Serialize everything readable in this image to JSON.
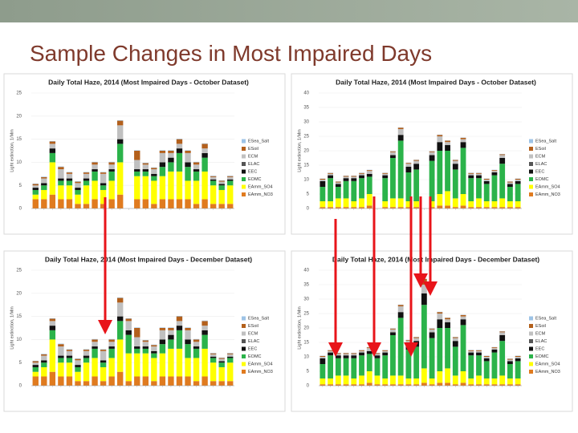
{
  "title": "Sample Changes in Most Impaired Days",
  "chart_data": [
    {
      "type": "bar",
      "stacked": true,
      "grid": true,
      "title": "Daily Total Haze, 2014 (Most Impaired Days - October Dataset)",
      "y_label": "Light extinction, 1/Mm",
      "categories": [
        null,
        null,
        null,
        null,
        null,
        null,
        null,
        null,
        null,
        null,
        null,
        null,
        null,
        null,
        null,
        null,
        null,
        null,
        null,
        null,
        null,
        null,
        null,
        null
      ],
      "ylim": [
        0,
        25
      ],
      "yticks": [
        0,
        5,
        10,
        15,
        20,
        25
      ],
      "series": [
        {
          "name": "EAmm_NO3",
          "color": "#e07b1f",
          "values": [
            2,
            2,
            3,
            2,
            2,
            1,
            1,
            2,
            1,
            2,
            3,
            null,
            2,
            2,
            1,
            2,
            2,
            2,
            2,
            1,
            2,
            1,
            1,
            1
          ]
        },
        {
          "name": "EAmm_SO4",
          "color": "#ffff00",
          "values": [
            1,
            2,
            7,
            3,
            3,
            2,
            4,
            4,
            3,
            4,
            7,
            null,
            5,
            5,
            5,
            5,
            6,
            6,
            4,
            5,
            6,
            4,
            3,
            4
          ]
        },
        {
          "name": "EOMC",
          "color": "#2bb34a",
          "values": [
            1,
            1,
            2,
            1,
            1,
            1,
            1,
            2,
            1,
            2,
            4,
            null,
            1,
            1,
            1,
            2,
            2,
            4,
            3,
            2,
            3,
            1,
            1,
            1
          ]
        },
        {
          "name": "EEC",
          "color": "#111111",
          "values": [
            0.5,
            0.5,
            1,
            0.5,
            0.5,
            0.5,
            0.5,
            0.5,
            0.5,
            0.5,
            1,
            null,
            0.5,
            0.5,
            0.5,
            1,
            1,
            1,
            1,
            0.5,
            1,
            0.3,
            0.3,
            0.3
          ]
        },
        {
          "name": "ELAC",
          "color": "#555555",
          "values": [
            0,
            0,
            0,
            0,
            0,
            0,
            0,
            0,
            0,
            0,
            0,
            null,
            0,
            0,
            0,
            0,
            0,
            0,
            0,
            0,
            0,
            0,
            0,
            0
          ]
        },
        {
          "name": "ECM",
          "color": "#c0c0c0",
          "values": [
            0.5,
            1,
            1,
            2,
            1,
            1,
            1,
            1,
            2,
            1,
            3,
            null,
            2,
            1,
            1,
            2,
            1,
            1,
            2,
            1,
            1,
            0.5,
            0.5,
            0.5
          ]
        },
        {
          "name": "ESoil",
          "color": "#b3601c",
          "values": [
            0.3,
            0.3,
            0.5,
            0.5,
            0.3,
            0.3,
            0.3,
            0.5,
            0.3,
            0.5,
            1,
            null,
            2,
            0.3,
            0.3,
            0.5,
            0.5,
            1,
            0.5,
            0.5,
            1,
            0.2,
            0.2,
            0.2
          ]
        },
        {
          "name": "ESea_Salt",
          "color": "#9dc3e6",
          "values": [
            0.1,
            0.1,
            0.1,
            0.1,
            0.1,
            0.1,
            0.1,
            0.1,
            0.1,
            0.1,
            0.1,
            null,
            0.1,
            0.1,
            0.1,
            0.1,
            0.1,
            0.1,
            0.1,
            0.1,
            0.1,
            0.1,
            0.1,
            0.1
          ]
        }
      ]
    },
    {
      "type": "bar",
      "stacked": true,
      "grid": true,
      "title": "Daily Total Haze, 2014 (Most Impaired Days - October Dataset)",
      "y_label": "Light extinction, 1/Mm",
      "categories": [
        null,
        null,
        null,
        null,
        null,
        null,
        null,
        null,
        null,
        null,
        null,
        null,
        null,
        null,
        null,
        null,
        null,
        null,
        null,
        null,
        null,
        null,
        null,
        null,
        null,
        null
      ],
      "ylim": [
        0,
        40
      ],
      "yticks": [
        0,
        5,
        10,
        15,
        20,
        25,
        30,
        35,
        40
      ],
      "series": [
        {
          "name": "EAmm_NO3",
          "color": "#e07b1f",
          "values": [
            0.5,
            0.5,
            0.5,
            0.5,
            0.5,
            0.5,
            1,
            null,
            0.5,
            0.5,
            0.5,
            0.5,
            0.5,
            null,
            0.5,
            1,
            1,
            0.5,
            1,
            0.5,
            0.5,
            0.5,
            0.5,
            0.5,
            0.5,
            0.5
          ]
        },
        {
          "name": "EAmm_SO4",
          "color": "#ffff00",
          "values": [
            2,
            2,
            3,
            3,
            2,
            3,
            4,
            null,
            2,
            3,
            3,
            2,
            2,
            null,
            2,
            4,
            5,
            3,
            4,
            2,
            3,
            2,
            2,
            3,
            2,
            2
          ]
        },
        {
          "name": "EOMC",
          "color": "#2bb34a",
          "values": [
            5,
            8,
            4,
            6,
            7,
            7,
            6,
            null,
            8,
            14,
            20,
            10,
            11,
            null,
            14,
            15,
            14,
            10,
            16,
            8,
            7,
            6,
            9,
            12,
            5,
            6
          ]
        },
        {
          "name": "EEC",
          "color": "#111111",
          "values": [
            2,
            1,
            1,
            1,
            1,
            1,
            1,
            null,
            1,
            1,
            2,
            2,
            2,
            null,
            2,
            3,
            2,
            2,
            2,
            1,
            1,
            1,
            1,
            2,
            1,
            1
          ]
        },
        {
          "name": "ELAC",
          "color": "#555555",
          "values": [
            0,
            0,
            0,
            0,
            0,
            0,
            0,
            null,
            0,
            0,
            0,
            0,
            0,
            null,
            0,
            0,
            0,
            0,
            0,
            0,
            0,
            0,
            0,
            0,
            0,
            0
          ]
        },
        {
          "name": "ECM",
          "color": "#c0c0c0",
          "values": [
            0.5,
            0.5,
            0.5,
            0.5,
            0.5,
            0.5,
            1,
            null,
            0.5,
            1,
            2,
            1,
            1,
            null,
            1,
            2,
            1,
            1,
            1,
            0.5,
            0.5,
            0.5,
            0.5,
            1,
            0.5,
            0.5
          ]
        },
        {
          "name": "ESoil",
          "color": "#b3601c",
          "values": [
            0.3,
            0.3,
            0.3,
            0.3,
            0.3,
            0.3,
            0.3,
            null,
            0.3,
            0.3,
            0.5,
            0.3,
            0.3,
            null,
            0.3,
            0.5,
            0.5,
            0.3,
            0.5,
            0.3,
            0.3,
            0.3,
            0.3,
            0.3,
            0.3,
            0.3
          ]
        },
        {
          "name": "ESea_Salt",
          "color": "#9dc3e6",
          "values": [
            0.1,
            0.1,
            0.1,
            0.1,
            0.1,
            0.1,
            0.1,
            null,
            0.1,
            0.1,
            0.1,
            0.1,
            0.1,
            null,
            0.1,
            0.1,
            0.1,
            0.1,
            0.1,
            0.1,
            0.1,
            0.1,
            0.1,
            0.1,
            0.1,
            0.1
          ]
        }
      ]
    },
    {
      "type": "bar",
      "stacked": true,
      "grid": true,
      "title": "Daily Total Haze, 2014 (Most Impaired Days - December Dataset)",
      "y_label": "Light extinction, 1/Mm",
      "categories": [
        null,
        null,
        null,
        null,
        null,
        null,
        null,
        null,
        null,
        null,
        null,
        null,
        null,
        null,
        null,
        null,
        null,
        null,
        null,
        null,
        null,
        null,
        null,
        null
      ],
      "ylim": [
        0,
        25
      ],
      "yticks": [
        0,
        5,
        10,
        15,
        20,
        25
      ],
      "series": [
        {
          "name": "EAmm_NO3",
          "color": "#e07b1f",
          "values": [
            2,
            2,
            3,
            2,
            2,
            1,
            1,
            2,
            1,
            2,
            3,
            1,
            2,
            2,
            1,
            2,
            2,
            2,
            2,
            1,
            2,
            1,
            1,
            1
          ]
        },
        {
          "name": "EAmm_SO4",
          "color": "#ffff00",
          "values": [
            1,
            2,
            7,
            3,
            3,
            2,
            4,
            4,
            3,
            4,
            7,
            6,
            5,
            5,
            5,
            5,
            6,
            6,
            4,
            5,
            6,
            4,
            3,
            4
          ]
        },
        {
          "name": "EOMC",
          "color": "#2bb34a",
          "values": [
            1,
            1,
            2,
            1,
            1,
            1,
            1,
            2,
            1,
            2,
            4,
            4,
            1,
            1,
            1,
            2,
            2,
            4,
            3,
            2,
            3,
            1,
            1,
            1
          ]
        },
        {
          "name": "EEC",
          "color": "#111111",
          "values": [
            0.5,
            0.5,
            1,
            0.5,
            0.5,
            0.5,
            0.5,
            0.5,
            0.5,
            0.5,
            1,
            1,
            0.5,
            0.5,
            0.5,
            1,
            1,
            1,
            1,
            0.5,
            1,
            0.3,
            0.3,
            0.3
          ]
        },
        {
          "name": "ELAC",
          "color": "#555555",
          "values": [
            0,
            0,
            0,
            0,
            0,
            0,
            0,
            0,
            0,
            0,
            0,
            0,
            0,
            0,
            0,
            0,
            0,
            0,
            0,
            0,
            0,
            0,
            0,
            0
          ]
        },
        {
          "name": "ECM",
          "color": "#c0c0c0",
          "values": [
            0.5,
            1,
            1,
            2,
            1,
            1,
            1,
            1,
            2,
            1,
            3,
            2,
            2,
            1,
            1,
            2,
            1,
            1,
            2,
            1,
            1,
            0.5,
            0.5,
            0.5
          ]
        },
        {
          "name": "ESoil",
          "color": "#b3601c",
          "values": [
            0.3,
            0.3,
            0.5,
            0.5,
            0.3,
            0.3,
            0.3,
            0.5,
            0.3,
            0.5,
            1,
            0.5,
            2,
            0.3,
            0.3,
            0.5,
            0.5,
            1,
            0.5,
            0.5,
            1,
            0.2,
            0.2,
            0.2
          ]
        },
        {
          "name": "ESea_Salt",
          "color": "#9dc3e6",
          "values": [
            0.1,
            0.1,
            0.1,
            0.1,
            0.1,
            0.1,
            0.1,
            0.1,
            0.1,
            0.1,
            0.1,
            0.1,
            0.1,
            0.1,
            0.1,
            0.1,
            0.1,
            0.1,
            0.1,
            0.1,
            0.1,
            0.1,
            0.1,
            0.1
          ]
        }
      ]
    },
    {
      "type": "bar",
      "stacked": true,
      "grid": true,
      "title": "Daily Total Haze, 2014 (Most Impaired Days - December Dataset)",
      "y_label": "Light extinction, 1/Mm",
      "categories": [
        null,
        null,
        null,
        null,
        null,
        null,
        null,
        null,
        null,
        null,
        null,
        null,
        null,
        null,
        null,
        null,
        null,
        null,
        null,
        null,
        null,
        null,
        null,
        null,
        null,
        null
      ],
      "ylim": [
        0,
        40
      ],
      "yticks": [
        0,
        5,
        10,
        15,
        20,
        25,
        30,
        35,
        40
      ],
      "series": [
        {
          "name": "EAmm_NO3",
          "color": "#e07b1f",
          "values": [
            0.5,
            0.5,
            0.5,
            0.5,
            0.5,
            0.5,
            1,
            0.5,
            0.5,
            0.5,
            0.5,
            0.5,
            0.5,
            1,
            0.5,
            1,
            1,
            0.5,
            1,
            0.5,
            0.5,
            0.5,
            0.5,
            0.5,
            0.5,
            0.5
          ]
        },
        {
          "name": "EAmm_SO4",
          "color": "#ffff00",
          "values": [
            2,
            2,
            3,
            3,
            2,
            3,
            4,
            3,
            2,
            3,
            3,
            2,
            2,
            5,
            2,
            4,
            5,
            3,
            4,
            2,
            3,
            2,
            2,
            3,
            2,
            2
          ]
        },
        {
          "name": "EOMC",
          "color": "#2bb34a",
          "values": [
            5,
            8,
            6,
            6,
            7,
            7,
            6,
            6,
            8,
            14,
            20,
            10,
            11,
            22,
            14,
            15,
            14,
            10,
            16,
            8,
            7,
            6,
            9,
            12,
            5,
            6
          ]
        },
        {
          "name": "EEC",
          "color": "#111111",
          "values": [
            2,
            1,
            1,
            1,
            1,
            1,
            1,
            1,
            1,
            1,
            2,
            2,
            2,
            4,
            2,
            3,
            2,
            2,
            2,
            1,
            1,
            1,
            1,
            2,
            1,
            1
          ]
        },
        {
          "name": "ELAC",
          "color": "#555555",
          "values": [
            0,
            0,
            0,
            0,
            0,
            0,
            0,
            0,
            0,
            0,
            0,
            0,
            0,
            0,
            0,
            0,
            0,
            0,
            0,
            0,
            0,
            0,
            0,
            0,
            0,
            0
          ]
        },
        {
          "name": "ECM",
          "color": "#c0c0c0",
          "values": [
            0.5,
            0.5,
            0.5,
            0.5,
            0.5,
            0.5,
            1,
            0.5,
            0.5,
            1,
            2,
            1,
            1,
            3,
            1,
            2,
            1,
            1,
            1,
            0.5,
            0.5,
            0.5,
            0.5,
            1,
            0.5,
            0.5
          ]
        },
        {
          "name": "ESoil",
          "color": "#b3601c",
          "values": [
            0.3,
            0.3,
            0.3,
            0.3,
            0.3,
            0.3,
            0.3,
            0.3,
            0.3,
            0.3,
            0.5,
            0.3,
            0.3,
            2,
            0.3,
            0.5,
            0.5,
            0.3,
            0.5,
            0.3,
            0.3,
            0.3,
            0.3,
            0.3,
            0.3,
            0.3
          ]
        },
        {
          "name": "ESea_Salt",
          "color": "#9dc3e6",
          "values": [
            0.1,
            0.1,
            0.1,
            0.1,
            0.1,
            0.1,
            0.1,
            0.1,
            0.1,
            0.1,
            0.1,
            0.1,
            0.1,
            0.1,
            0.1,
            0.1,
            0.1,
            0.1,
            0.1,
            0.1,
            0.1,
            0.1,
            0.1,
            0.1,
            0.1,
            0.1
          ]
        }
      ]
    }
  ]
}
